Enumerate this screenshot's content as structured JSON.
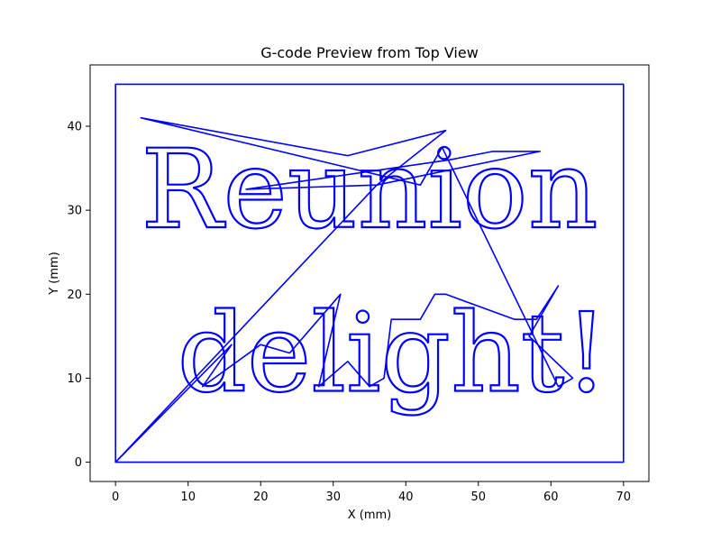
{
  "chart_data": {
    "type": "line",
    "title": "G-code Preview from Top View",
    "xlabel": "X (mm)",
    "ylabel": "Y (mm)",
    "xlim": [
      -3.5,
      73.5
    ],
    "ylim": [
      -2.3,
      47.3
    ],
    "xticks": [
      0,
      10,
      20,
      30,
      40,
      50,
      60,
      70
    ],
    "yticks": [
      0,
      10,
      20,
      30,
      40
    ],
    "grid": false,
    "line_color": "#0000ff",
    "series": [
      {
        "points": [
          [
            0,
            0
          ],
          [
            0,
            45
          ],
          [
            70,
            45
          ],
          [
            70,
            0
          ],
          [
            0,
            0
          ],
          [
            16,
            14
          ],
          [
            12,
            9
          ],
          [
            20,
            14
          ],
          [
            24,
            13
          ],
          [
            31,
            20
          ],
          [
            28,
            9
          ],
          [
            32,
            12
          ],
          [
            35,
            9
          ],
          [
            37,
            10
          ],
          [
            38,
            17
          ],
          [
            42,
            17
          ],
          [
            44,
            20
          ],
          [
            45.5,
            20
          ],
          [
            55,
            17
          ],
          [
            58,
            17
          ],
          [
            61,
            21
          ],
          [
            57,
            15
          ],
          [
            63,
            10
          ],
          [
            61,
            9
          ],
          [
            45,
            37.5
          ],
          [
            42,
            33
          ],
          [
            3.5,
            41
          ],
          [
            32,
            36.5
          ],
          [
            45.5,
            39.5
          ],
          [
            36,
            33
          ],
          [
            18,
            32.5
          ],
          [
            46,
            36
          ],
          [
            52,
            37
          ],
          [
            58.5,
            37
          ],
          [
            36,
            33
          ],
          [
            0,
            0
          ]
        ]
      }
    ],
    "text_labels": [
      {
        "text": "Reunion",
        "x": 3.5,
        "y": 28,
        "size": 15
      },
      {
        "text": "delight!",
        "x": 8.5,
        "y": 8.5,
        "size": 15
      }
    ]
  }
}
